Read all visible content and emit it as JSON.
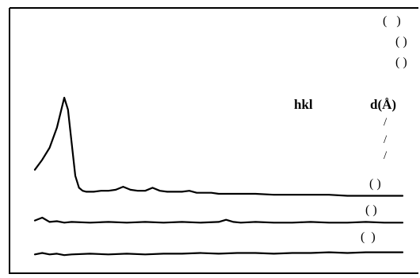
{
  "figure": {
    "top_right_parens": [
      "(   )",
      "( )",
      "( )"
    ],
    "table": {
      "col1_header": "hkl",
      "col2_header": "d(Å)",
      "slashes": [
        "/",
        "/",
        "/"
      ]
    },
    "trace_labels": [
      "( )",
      "( )",
      "(  )"
    ],
    "colors": {
      "line": "#000000",
      "background": "#ffffff"
    }
  },
  "chart_data": {
    "type": "line",
    "title": "",
    "xlabel": "",
    "ylabel": "",
    "grid": false,
    "series": [
      {
        "x": [
          0,
          2,
          4,
          6,
          8,
          9,
          10,
          11,
          12,
          13,
          14,
          16,
          18,
          20,
          22,
          24,
          26,
          28,
          30,
          32,
          34,
          36,
          38,
          40,
          42,
          44,
          46,
          48,
          50,
          55,
          60,
          65,
          70,
          75,
          80,
          85,
          90,
          95,
          100
        ],
        "values": [
          0.28,
          0.38,
          0.5,
          0.7,
          1.0,
          0.88,
          0.55,
          0.22,
          0.1,
          0.07,
          0.06,
          0.06,
          0.07,
          0.07,
          0.08,
          0.11,
          0.08,
          0.07,
          0.07,
          0.1,
          0.07,
          0.06,
          0.06,
          0.06,
          0.07,
          0.05,
          0.05,
          0.05,
          0.04,
          0.04,
          0.04,
          0.03,
          0.03,
          0.03,
          0.03,
          0.02,
          0.02,
          0.02,
          0.02
        ]
      },
      {
        "x": [
          0,
          2,
          4,
          6,
          8,
          10,
          15,
          20,
          25,
          30,
          35,
          40,
          45,
          50,
          52,
          54,
          56,
          60,
          65,
          70,
          75,
          80,
          85,
          90,
          95,
          100
        ],
        "values": [
          0.06,
          0.1,
          0.04,
          0.05,
          0.03,
          0.04,
          0.03,
          0.04,
          0.03,
          0.04,
          0.03,
          0.04,
          0.03,
          0.04,
          0.07,
          0.04,
          0.03,
          0.04,
          0.03,
          0.03,
          0.04,
          0.03,
          0.03,
          0.04,
          0.03,
          0.03
        ]
      },
      {
        "x": [
          0,
          2,
          4,
          6,
          8,
          10,
          15,
          20,
          25,
          30,
          35,
          40,
          45,
          50,
          55,
          60,
          65,
          70,
          75,
          80,
          85,
          90,
          95,
          100
        ],
        "values": [
          0.03,
          0.05,
          0.03,
          0.04,
          0.02,
          0.03,
          0.04,
          0.03,
          0.04,
          0.03,
          0.04,
          0.04,
          0.05,
          0.04,
          0.05,
          0.05,
          0.04,
          0.05,
          0.05,
          0.06,
          0.05,
          0.06,
          0.06,
          0.06
        ]
      }
    ]
  }
}
